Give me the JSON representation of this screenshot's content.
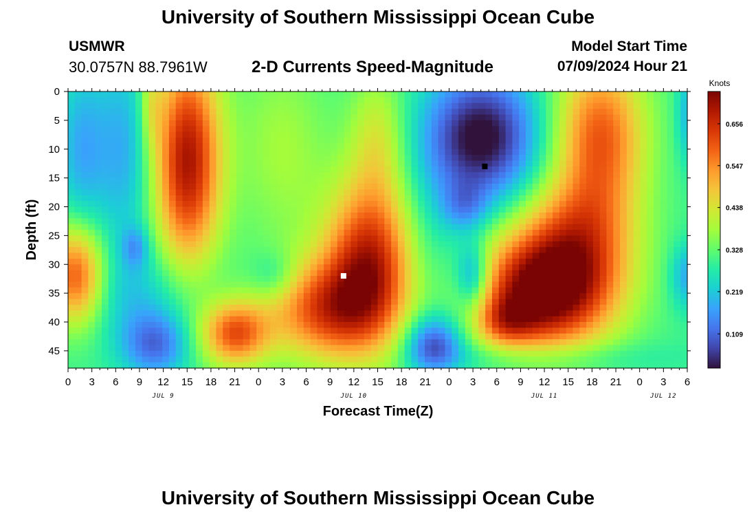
{
  "page": {
    "title": "University of Southern Mississippi Ocean Cube",
    "footer_title": "University of Southern Mississippi Ocean Cube",
    "station_id": "USMWR",
    "station_coords": "30.0757N  88.7961W",
    "subtitle": "2-D Currents Speed-Magnitude",
    "model_start_label": "Model Start Time",
    "model_start_value": "07/09/2024 Hour 21"
  },
  "chart_data": {
    "type": "heatmap",
    "title": "2-D Currents Speed-Magnitude",
    "xlabel": "Forecast Time(Z)",
    "ylabel": "Depth (ft)",
    "x_unit": "hours since 2024-07-09 00Z",
    "xlim": [
      0,
      78
    ],
    "ylim": [
      0,
      48
    ],
    "y_inverted": true,
    "x_ticks": [
      0,
      3,
      6,
      9,
      12,
      15,
      18,
      21,
      24,
      27,
      30,
      33,
      36,
      39,
      42,
      45,
      48,
      51,
      54,
      57,
      60,
      63,
      66,
      69,
      72,
      75,
      78
    ],
    "x_tick_labels": [
      "0",
      "3",
      "6",
      "9",
      "12",
      "15",
      "18",
      "21",
      "0",
      "3",
      "6",
      "9",
      "12",
      "15",
      "18",
      "21",
      "0",
      "3",
      "6",
      "9",
      "12",
      "15",
      "18",
      "21",
      "0",
      "3",
      "6"
    ],
    "day_labels": [
      {
        "text": "JUL 9",
        "x": 12
      },
      {
        "text": "JUL 10",
        "x": 36
      },
      {
        "text": "JUL 11",
        "x": 60
      },
      {
        "text": "JUL 12",
        "x": 75
      }
    ],
    "y_ticks": [
      0,
      5,
      10,
      15,
      20,
      25,
      30,
      35,
      40,
      45
    ],
    "colorbar": {
      "label": "Knots",
      "min": 0.02,
      "max": 0.74,
      "ticks": [
        0.109,
        0.219,
        0.328,
        0.438,
        0.547,
        0.656
      ],
      "colors": [
        "#30123b",
        "#4145ab",
        "#4675ed",
        "#39a2fc",
        "#1bcfd4",
        "#24eca6",
        "#61fc6c",
        "#a4fc3b",
        "#d1e834",
        "#f3c63a",
        "#fe9b2d",
        "#f36315",
        "#d93806",
        "#b11901",
        "#7a0403"
      ]
    },
    "field_background": 0.3,
    "field_features": [
      {
        "x": 1,
        "y": 32,
        "sx": 2.5,
        "sy": 6,
        "v": 0.32
      },
      {
        "x": 8.5,
        "y": 27,
        "sx": 1.2,
        "sy": 2.5,
        "v": -0.1
      },
      {
        "x": 11,
        "y": 44,
        "sx": 3,
        "sy": 4,
        "v": -0.18
      },
      {
        "x": 15,
        "y": 12,
        "sx": 3,
        "sy": 13,
        "v": 0.4
      },
      {
        "x": 7,
        "y": 10,
        "sx": 3,
        "sy": 12,
        "v": -0.12
      },
      {
        "x": 1.5,
        "y": 10,
        "sx": 2,
        "sy": 10,
        "v": -0.1
      },
      {
        "x": 10.5,
        "y": 2,
        "sx": 1,
        "sy": 6,
        "v": 0.1
      },
      {
        "x": 9,
        "y": 35,
        "sx": 6,
        "sy": 6,
        "v": -0.08
      },
      {
        "x": 26,
        "y": 32,
        "sx": 2,
        "sy": 3,
        "v": -0.08
      },
      {
        "x": 27,
        "y": 10,
        "sx": 4,
        "sy": 12,
        "v": 0.08
      },
      {
        "x": 32,
        "y": 38,
        "sx": 5,
        "sy": 6,
        "v": 0.28
      },
      {
        "x": 38,
        "y": 30,
        "sx": 4,
        "sy": 10,
        "v": 0.38
      },
      {
        "x": 39,
        "y": 8,
        "sx": 2.5,
        "sy": 8,
        "v": 0.12
      },
      {
        "x": 21,
        "y": 42,
        "sx": 3,
        "sy": 4,
        "v": 0.3
      },
      {
        "x": 45,
        "y": 25,
        "sx": 3,
        "sy": 10,
        "v": -0.05
      },
      {
        "x": 46,
        "y": 44,
        "sx": 2.5,
        "sy": 3.5,
        "v": -0.22
      },
      {
        "x": 52,
        "y": 8,
        "sx": 5,
        "sy": 8,
        "v": -0.3
      },
      {
        "x": 50,
        "y": 20,
        "sx": 2,
        "sy": 3,
        "v": -0.1
      },
      {
        "x": 51,
        "y": 32,
        "sx": 1.5,
        "sy": 4,
        "v": -0.18
      },
      {
        "x": 58,
        "y": 35,
        "sx": 5,
        "sy": 7,
        "v": 0.35
      },
      {
        "x": 64,
        "y": 32,
        "sx": 5,
        "sy": 8,
        "v": 0.3
      },
      {
        "x": 55,
        "y": 40,
        "sx": 2.5,
        "sy": 3,
        "v": 0.15
      },
      {
        "x": 67,
        "y": 8,
        "sx": 4,
        "sy": 10,
        "v": 0.3
      },
      {
        "x": 64,
        "y": 22,
        "sx": 5,
        "sy": 6,
        "v": 0.1
      },
      {
        "x": 78,
        "y": 32,
        "sx": 1.5,
        "sy": 4,
        "v": -0.12
      },
      {
        "x": 78,
        "y": 4,
        "sx": 1,
        "sy": 6,
        "v": -0.1
      },
      {
        "x": 60,
        "y": 46,
        "sx": 10,
        "sy": 2,
        "v": -0.06
      }
    ],
    "markers": [
      {
        "name": "min-marker",
        "x": 52.5,
        "y": 13,
        "color": "#000000"
      },
      {
        "name": "max-marker",
        "x": 34.7,
        "y": 32,
        "color": "#ffffff"
      }
    ]
  }
}
